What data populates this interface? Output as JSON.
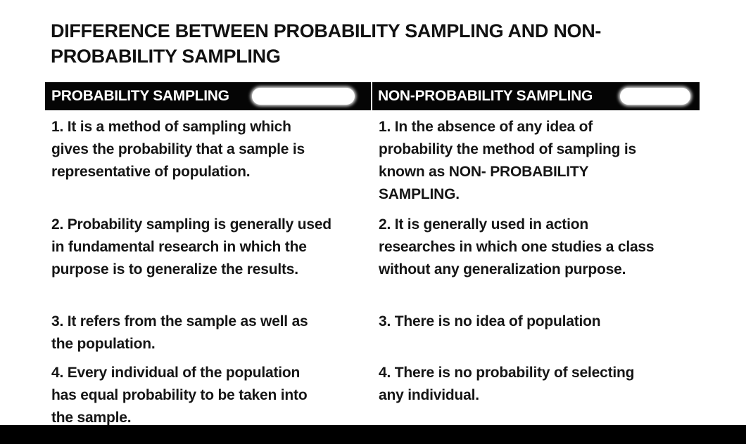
{
  "document": {
    "title": "DIFFERENCE BETWEEN PROBABILITY SAMPLING AND NON-\nPROBABILITY SAMPLING",
    "columns": {
      "left_header": "PROBABILITY SAMPLING",
      "right_header": "NON-PROBABILITY SAMPLING"
    },
    "rows": [
      {
        "left": "1. It is a method of sampling which\ngives the probability that a sample is\nrepresentative of population.",
        "right": "1. In the absence of any idea of\nprobability the method of sampling is\nknown as NON- PROBABILITY\nSAMPLING."
      },
      {
        "left": "2. Probability sampling is generally used\nin fundamental research in which the\npurpose is to generalize the results.",
        "right": "2. It is generally used in action\nresearches in which one studies a class\nwithout any generalization purpose."
      },
      {
        "left": "3. It refers from the sample as well as\nthe population.",
        "right": "3. There is no idea of population"
      },
      {
        "left": "4. Every individual of the population\nhas equal probability to be taken into\nthe sample.",
        "right": "4. There is no probability of selecting\nany individual."
      }
    ]
  }
}
